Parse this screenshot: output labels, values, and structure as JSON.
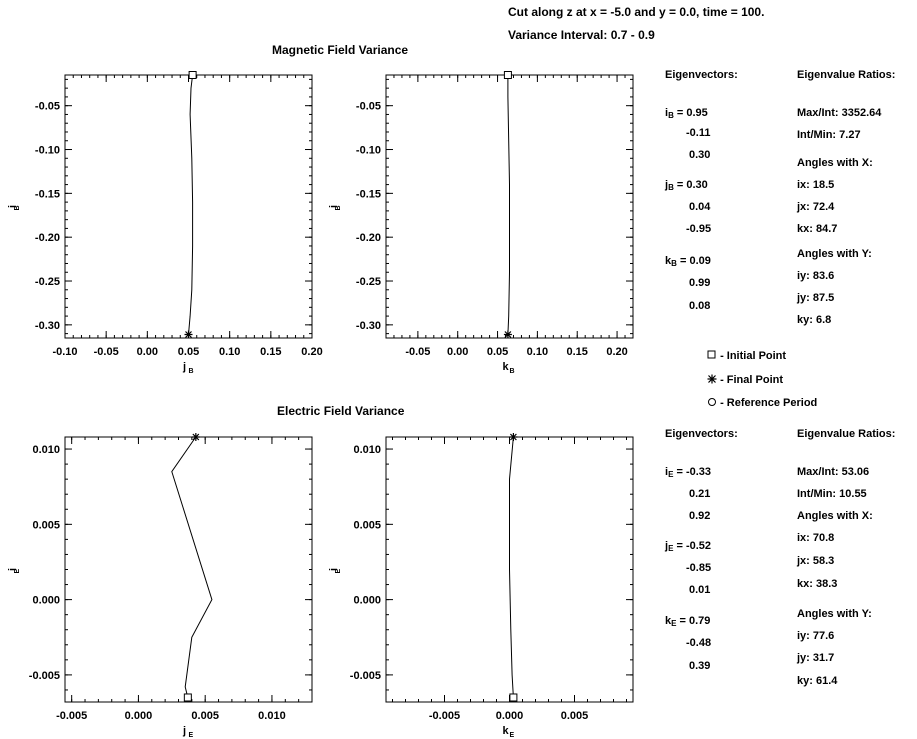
{
  "header": {
    "line1": "Cut along z at x =  -5.0 and y =   0.0,  time = 100.",
    "line2": "Variance Interval:  0.7 -   0.9"
  },
  "legend": {
    "initial": "- Initial Point",
    "final": "- Final Point",
    "reference": "- Reference Period"
  },
  "chart_data": [
    {
      "type": "line",
      "title": "Magnetic Field Variance",
      "xlabel": "j",
      "xlabel_sub": "B",
      "ylabel": "i",
      "ylabel_sub": "B",
      "xlim": [
        -0.1,
        0.2
      ],
      "ylim": [
        -0.315,
        -0.015
      ],
      "xticks": [
        "-0.10",
        "-0.05",
        "0.00",
        "0.05",
        "0.10",
        "0.15",
        "0.20"
      ],
      "xtick_values": [
        -0.1,
        -0.05,
        0.0,
        0.05,
        0.1,
        0.15,
        0.2
      ],
      "yticks": [
        "-0.05",
        "-0.10",
        "-0.15",
        "-0.20",
        "-0.25",
        "-0.30"
      ],
      "ytick_values": [
        -0.05,
        -0.1,
        -0.15,
        -0.2,
        -0.25,
        -0.3
      ],
      "x": [
        0.055,
        0.053,
        0.052,
        0.054,
        0.055,
        0.055,
        0.054,
        0.052,
        0.05
      ],
      "y": [
        -0.015,
        -0.03,
        -0.06,
        -0.11,
        -0.16,
        -0.21,
        -0.26,
        -0.29,
        -0.311
      ]
    },
    {
      "type": "line",
      "xlabel": "k",
      "xlabel_sub": "B",
      "ylabel": "i",
      "ylabel_sub": "B",
      "xlim": [
        -0.09,
        0.22
      ],
      "ylim": [
        -0.315,
        -0.015
      ],
      "xticks": [
        "-0.05",
        "0.00",
        "0.05",
        "0.10",
        "0.15",
        "0.20"
      ],
      "xtick_values": [
        -0.05,
        0.0,
        0.05,
        0.1,
        0.15,
        0.2
      ],
      "yticks": [
        "-0.05",
        "-0.10",
        "-0.15",
        "-0.20",
        "-0.25",
        "-0.30"
      ],
      "ytick_values": [
        -0.05,
        -0.1,
        -0.15,
        -0.2,
        -0.25,
        -0.3
      ],
      "x": [
        0.063,
        0.063,
        0.064,
        0.065,
        0.065,
        0.065,
        0.064,
        0.063
      ],
      "y": [
        -0.015,
        -0.04,
        -0.09,
        -0.14,
        -0.19,
        -0.24,
        -0.29,
        -0.311
      ]
    },
    {
      "type": "line",
      "title": "Electric Field Variance",
      "xlabel": "j",
      "xlabel_sub": "E",
      "ylabel": "i",
      "ylabel_sub": "E",
      "xlim": [
        -0.0055,
        0.013
      ],
      "ylim": [
        -0.0068,
        0.0108
      ],
      "xticks": [
        "-0.005",
        "0.000",
        "0.005",
        "0.010"
      ],
      "xtick_values": [
        -0.005,
        0.0,
        0.005,
        0.01
      ],
      "yticks": [
        "0.010",
        "0.005",
        "0.000",
        "-0.005"
      ],
      "ytick_values": [
        0.01,
        0.005,
        0.0,
        -0.005
      ],
      "x": [
        0.0043,
        0.0025,
        0.0055,
        0.004,
        0.0035,
        0.0037
      ],
      "y": [
        0.0108,
        0.0085,
        0.0,
        -0.0025,
        -0.0058,
        -0.0065
      ]
    },
    {
      "type": "line",
      "xlabel": "k",
      "xlabel_sub": "E",
      "ylabel": "i",
      "ylabel_sub": "E",
      "xlim": [
        -0.0095,
        0.0095
      ],
      "ylim": [
        -0.0068,
        0.0108
      ],
      "xticks": [
        "-0.005",
        "0.000",
        "0.005"
      ],
      "xtick_values": [
        -0.005,
        0.0,
        0.005
      ],
      "yticks": [
        "0.010",
        "0.005",
        "0.000",
        "-0.005"
      ],
      "ytick_values": [
        0.01,
        0.005,
        0.0,
        -0.005
      ],
      "x": [
        0.0003,
        0.0,
        0.0,
        0.0001,
        0.0002,
        0.0003
      ],
      "y": [
        0.0108,
        0.008,
        0.002,
        -0.002,
        -0.005,
        -0.0065
      ]
    }
  ],
  "magnetic_panel": {
    "eigenvectors_title": "Eigenvectors:",
    "ratios_title": "Eigenvalue Ratios:",
    "i_label": "i",
    "i_sub": "B",
    "i_values": [
      "=  0.95",
      "-0.11",
      "0.30"
    ],
    "j_label": "j",
    "j_sub": "B",
    "j_values": [
      "=  0.30",
      "0.04",
      "-0.95"
    ],
    "k_label": "k",
    "k_sub": "B",
    "k_values": [
      "=  0.09",
      "0.99",
      "0.08"
    ],
    "max_int": "Max/Int: 3352.64",
    "int_min": "Int/Min:    7.27",
    "angles_x_title": "Angles with X:",
    "ix": "ix: 18.5",
    "jx": "jx: 72.4",
    "kx": "kx: 84.7",
    "angles_y_title": "Angles with Y:",
    "iy": "iy: 83.6",
    "jy": "jy: 87.5",
    "ky": "ky:  6.8"
  },
  "electric_panel": {
    "eigenvectors_title": "Eigenvectors:",
    "ratios_title": "Eigenvalue Ratios:",
    "i_label": "i",
    "i_sub": "E",
    "i_values": [
      "= -0.33",
      "0.21",
      "0.92"
    ],
    "j_label": "j",
    "j_sub": "E",
    "j_values": [
      "= -0.52",
      "-0.85",
      "0.01"
    ],
    "k_label": "k",
    "k_sub": "E",
    "k_values": [
      "=  0.79",
      "-0.48",
      "0.39"
    ],
    "max_int": "Max/Int:   53.06",
    "int_min": "Int/Min:   10.55",
    "angles_x_title": "Angles with X:",
    "ix": "ix: 70.8",
    "jx": "jx: 58.3",
    "kx": "kx: 38.3",
    "angles_y_title": "Angles with Y:",
    "iy": "iy: 77.6",
    "jy": "jy: 31.7",
    "ky": "ky: 61.4"
  }
}
